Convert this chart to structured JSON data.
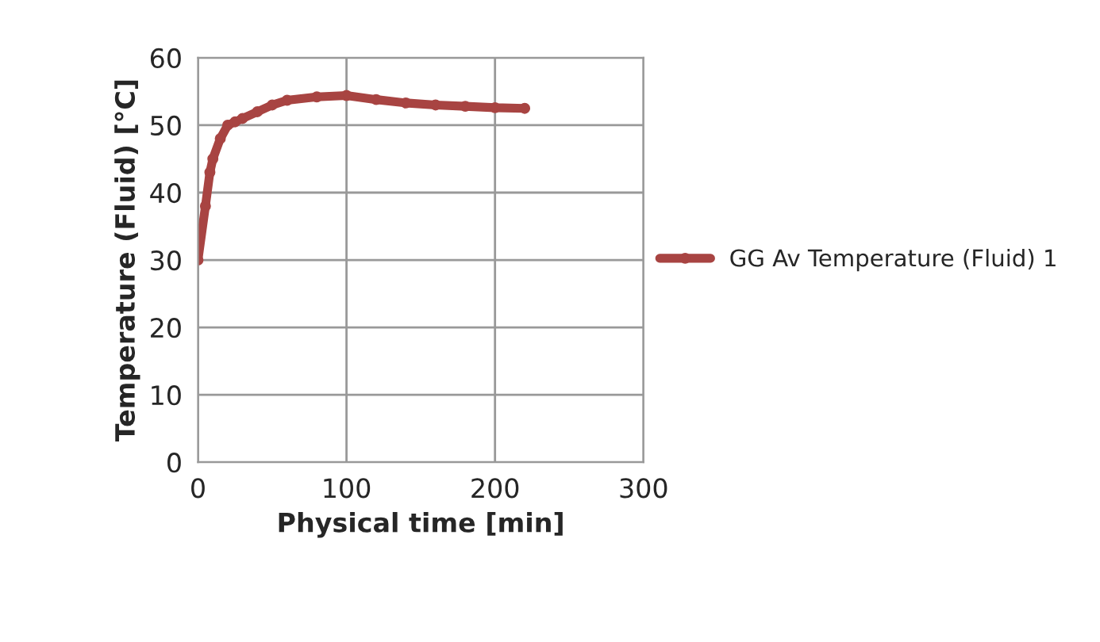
{
  "chart_data": {
    "type": "line",
    "xlabel": "Physical time [min]",
    "ylabel": "Temperature (Fluid) [°C]",
    "xlim": [
      0,
      300
    ],
    "xticks": [
      0,
      100,
      200,
      300
    ],
    "ylim": [
      0,
      60
    ],
    "yticks": [
      0,
      10,
      20,
      30,
      40,
      50,
      60
    ],
    "grid": true,
    "legend": "right",
    "marker": "circle",
    "line_style": "solid",
    "series": [
      {
        "name": "GG Av Temperature (Fluid) 1",
        "color": "#a84442",
        "x": [
          0,
          5,
          8,
          10,
          15,
          20,
          25,
          30,
          40,
          50,
          60,
          80,
          100,
          120,
          140,
          160,
          180,
          200,
          220
        ],
        "values": [
          30,
          38,
          43,
          45,
          48,
          50,
          50.5,
          51,
          52,
          53,
          53.7,
          54.2,
          54.4,
          53.8,
          53.3,
          53,
          52.8,
          52.6,
          52.5
        ]
      }
    ]
  }
}
